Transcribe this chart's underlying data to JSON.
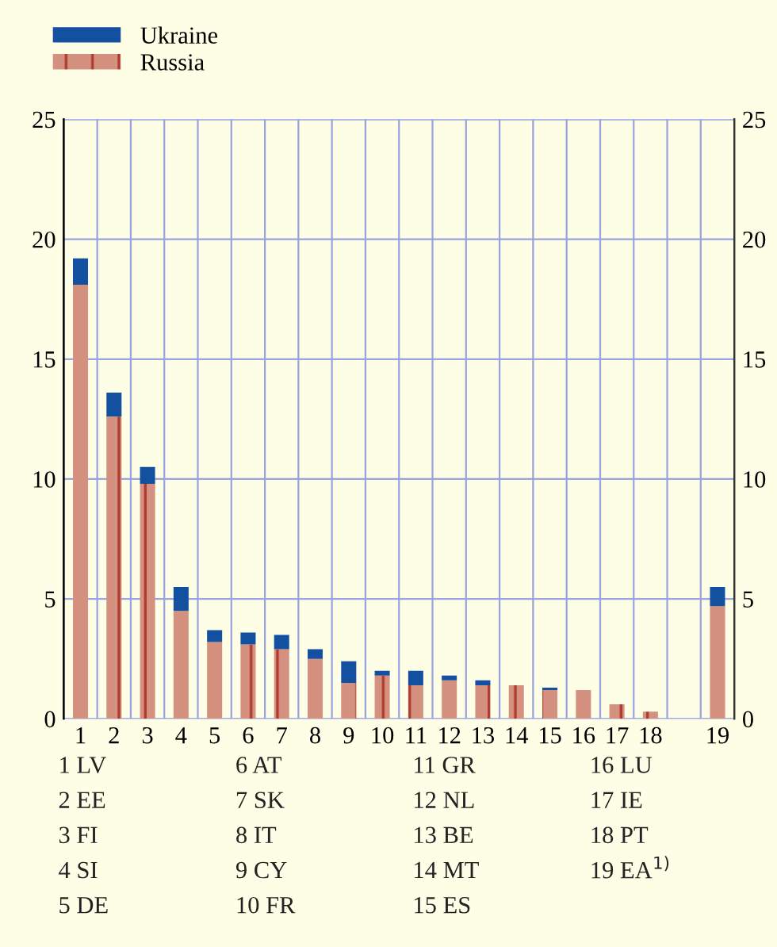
{
  "chart_data": {
    "type": "bar",
    "stacked": true,
    "categories": [
      "1",
      "2",
      "3",
      "4",
      "5",
      "6",
      "7",
      "8",
      "9",
      "10",
      "11",
      "12",
      "13",
      "14",
      "15",
      "16",
      "17",
      "18",
      null,
      "19"
    ],
    "series": [
      {
        "name": "Russia",
        "color": "#d4917f",
        "values": [
          18.1,
          12.6,
          9.8,
          4.5,
          3.2,
          3.1,
          2.9,
          2.5,
          1.5,
          1.8,
          1.4,
          1.6,
          1.4,
          1.4,
          1.2,
          1.2,
          0.6,
          0.3,
          null,
          4.7
        ]
      },
      {
        "name": "Ukraine",
        "color": "#1450a0",
        "values": [
          1.1,
          1.0,
          0.7,
          1.0,
          0.5,
          0.5,
          0.6,
          0.4,
          0.9,
          0.2,
          0.6,
          0.2,
          0.2,
          0,
          0.1,
          0,
          0,
          0,
          null,
          0.8
        ]
      }
    ],
    "ylim": [
      0,
      25
    ],
    "yticks": [
      0,
      5,
      10,
      15,
      20,
      25
    ],
    "y2lim": [
      0,
      25
    ],
    "y2ticks": [
      0,
      5,
      10,
      15,
      20,
      25
    ],
    "grid": true,
    "legend": "top left",
    "annotations": [
      "1 LV",
      "2 EE",
      "3 FI",
      "4 SI",
      "5 DE",
      "6 AT",
      "7 SK",
      "8 IT",
      "9 CY",
      "10 FR",
      "11 GR",
      "12 NL",
      "13 BE",
      "14 MT",
      "15 ES",
      "16 LU",
      "17 IE",
      "18 PT",
      "19 EA$^{1)}$"
    ]
  }
}
